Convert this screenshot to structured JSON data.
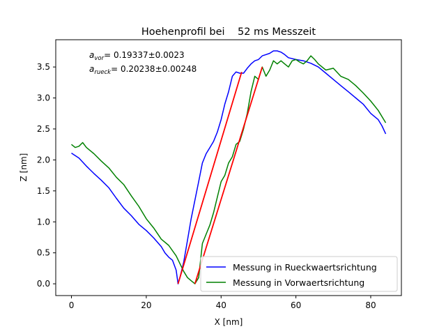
{
  "chart_data": {
    "type": "line",
    "title": "Hoehenprofil bei    52 ms Messzeit",
    "xlabel": "X [nm]",
    "ylabel": "Z [nm]",
    "xlim": [
      -4.2,
      88.2
    ],
    "ylim": [
      -0.19,
      3.94
    ],
    "xticks": [
      0,
      20,
      40,
      60,
      80
    ],
    "yticks": [
      0.0,
      0.5,
      1.0,
      1.5,
      2.0,
      2.5,
      3.0,
      3.5
    ],
    "xtick_labels": [
      "0",
      "20",
      "40",
      "60",
      "80"
    ],
    "ytick_labels": [
      "0.0",
      "0.5",
      "1.0",
      "1.5",
      "2.0",
      "2.5",
      "3.0",
      "3.5"
    ],
    "grid": false,
    "legend_position": "lower-right",
    "annotations": [
      {
        "symbol": "a",
        "subscript": "vor",
        "text": "= 0.19337±0.0023"
      },
      {
        "symbol": "a",
        "subscript": "rueck",
        "text": "= 0.20238±0.00248"
      }
    ],
    "series": [
      {
        "name": "Messung in Rueckwaertsrichtung",
        "color": "#0000ff",
        "x": [
          0,
          2,
          4,
          6,
          8,
          10,
          12,
          14,
          16,
          18,
          20,
          22,
          24,
          25,
          26,
          27,
          28,
          28.5,
          29,
          30,
          31,
          32,
          33,
          34,
          35,
          36,
          37,
          38,
          39,
          40,
          41,
          42,
          43,
          44,
          45,
          46,
          47,
          48,
          49,
          50,
          51,
          52,
          53,
          54,
          55,
          56,
          57,
          58,
          60,
          62,
          64,
          66,
          68,
          70,
          72,
          74,
          76,
          78,
          80,
          82,
          83,
          84
        ],
        "y": [
          2.11,
          2.03,
          1.9,
          1.78,
          1.67,
          1.55,
          1.38,
          1.22,
          1.1,
          0.96,
          0.86,
          0.74,
          0.6,
          0.5,
          0.43,
          0.38,
          0.22,
          0.0,
          0.1,
          0.35,
          0.7,
          1.05,
          1.35,
          1.65,
          1.95,
          2.1,
          2.2,
          2.3,
          2.45,
          2.65,
          2.9,
          3.1,
          3.35,
          3.42,
          3.4,
          3.4,
          3.48,
          3.55,
          3.6,
          3.62,
          3.68,
          3.7,
          3.72,
          3.76,
          3.76,
          3.74,
          3.7,
          3.65,
          3.62,
          3.6,
          3.56,
          3.5,
          3.4,
          3.3,
          3.2,
          3.1,
          3.0,
          2.9,
          2.75,
          2.65,
          2.55,
          2.42
        ]
      },
      {
        "name": "Messung in Vorwaertsrichtung",
        "color": "#008000",
        "x": [
          0,
          1,
          2,
          3,
          4,
          6,
          8,
          10,
          12,
          14,
          16,
          18,
          20,
          22,
          24,
          26,
          28,
          30,
          31,
          32,
          33,
          34,
          35,
          36,
          37,
          38,
          39,
          40,
          41,
          42,
          43,
          44,
          45,
          46,
          47,
          48,
          49,
          50,
          51,
          52,
          53,
          54,
          55,
          56,
          57,
          58,
          59,
          60,
          61,
          62,
          63,
          64,
          65,
          66,
          68,
          70,
          72,
          74,
          76,
          78,
          80,
          82,
          84
        ],
        "y": [
          2.25,
          2.2,
          2.22,
          2.28,
          2.2,
          2.1,
          1.98,
          1.87,
          1.72,
          1.6,
          1.42,
          1.25,
          1.05,
          0.9,
          0.72,
          0.62,
          0.45,
          0.2,
          0.1,
          0.05,
          0.0,
          0.1,
          0.65,
          0.8,
          0.95,
          1.15,
          1.4,
          1.65,
          1.75,
          1.95,
          2.05,
          2.25,
          2.3,
          2.5,
          2.75,
          3.1,
          3.35,
          3.3,
          3.5,
          3.35,
          3.45,
          3.6,
          3.55,
          3.6,
          3.55,
          3.5,
          3.6,
          3.62,
          3.58,
          3.55,
          3.6,
          3.68,
          3.62,
          3.55,
          3.45,
          3.48,
          3.35,
          3.3,
          3.2,
          3.08,
          2.95,
          2.8,
          2.6
        ]
      },
      {
        "color": "#ff0000",
        "x": [
          28.5,
          45.5
        ],
        "y": [
          0.0,
          3.42
        ]
      },
      {
        "color": "#ff0000",
        "x": [
          33,
          51
        ],
        "y": [
          0.0,
          3.5
        ]
      }
    ]
  }
}
